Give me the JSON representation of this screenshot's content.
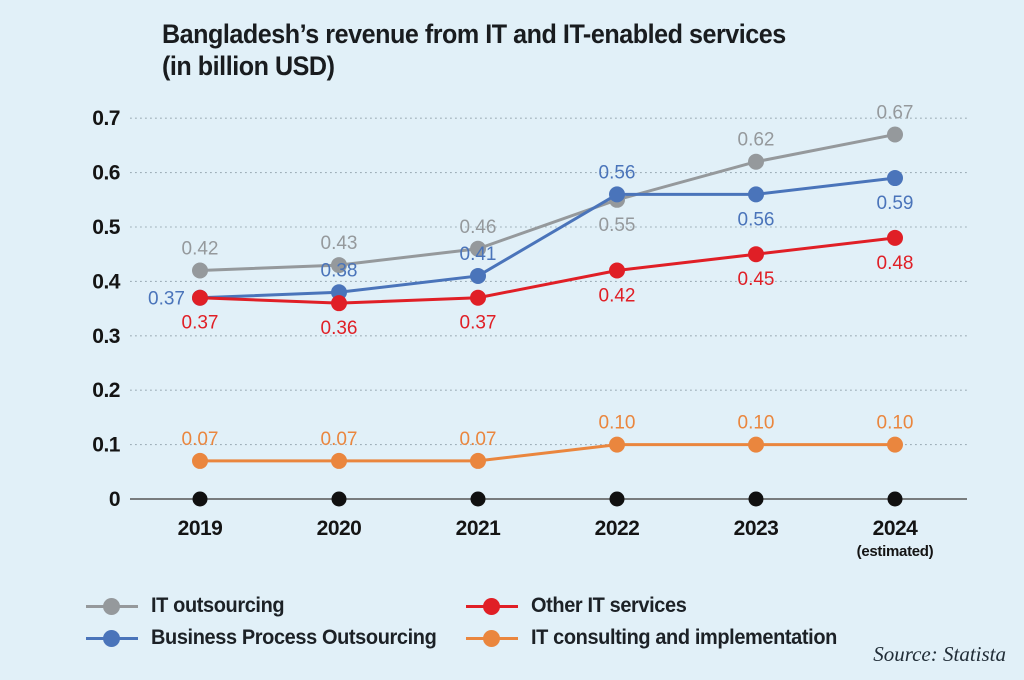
{
  "title": {
    "line1": "Bangladesh’s revenue from IT and IT-enabled services",
    "line2": "(in billion USD)"
  },
  "source": "Source: Statista",
  "colors": {
    "background": "#e1f0f8",
    "axis_line": "#555555",
    "axis_dot": "#101010",
    "gridline": "#9fafb9",
    "tick_text": "#141414"
  },
  "chart_data": {
    "type": "line",
    "title": "Bangladesh’s revenue from IT and IT-enabled services (in billion USD)",
    "categories": [
      "2019",
      "2020",
      "2021",
      "2022",
      "2023",
      "2024"
    ],
    "x_sub_label": "(estimated)",
    "x_sub_label_category": "2024",
    "y_tick_labels": [
      "0",
      "0.1",
      "0.2",
      "0.3",
      "0.4",
      "0.5",
      "0.6",
      "0.7"
    ],
    "ylim": [
      0,
      0.7
    ],
    "grid": "horizontal-dotted",
    "legend_position": "bottom",
    "series": [
      {
        "name": "IT outsourcing",
        "color": "#95999c",
        "values": [
          0.42,
          0.43,
          0.46,
          0.55,
          0.62,
          0.67
        ],
        "labels": [
          "0.42",
          "0.43",
          "0.46",
          "0.55",
          "0.62",
          "0.67"
        ],
        "label_positions": [
          "above",
          "above",
          "above",
          "below",
          "above",
          "above"
        ]
      },
      {
        "name": "Business Process Outsourcing",
        "color": "#4a74ba",
        "values": [
          0.37,
          0.38,
          0.41,
          0.56,
          0.56,
          0.59
        ],
        "labels": [
          "0.37",
          "0.38",
          "0.41",
          "0.56",
          "0.56",
          "0.59"
        ],
        "label_positions": [
          "left",
          "above",
          "above",
          "above",
          "below",
          "below"
        ]
      },
      {
        "name": "Other IT services",
        "color": "#e01f26",
        "values": [
          0.37,
          0.36,
          0.37,
          0.42,
          0.45,
          0.48
        ],
        "labels": [
          "0.37",
          "0.36",
          "0.37",
          "0.42",
          "0.45",
          "0.48"
        ],
        "label_positions": [
          "below",
          "below",
          "below",
          "below",
          "below",
          "below"
        ]
      },
      {
        "name": "IT consulting and implementation",
        "color": "#ea863e",
        "values": [
          0.07,
          0.07,
          0.07,
          0.1,
          0.1,
          0.1
        ],
        "labels": [
          "0.07",
          "0.07",
          "0.07",
          "0.10",
          "0.10",
          "0.10"
        ],
        "label_positions": [
          "above",
          "above",
          "above",
          "above",
          "above",
          "above"
        ]
      }
    ]
  }
}
